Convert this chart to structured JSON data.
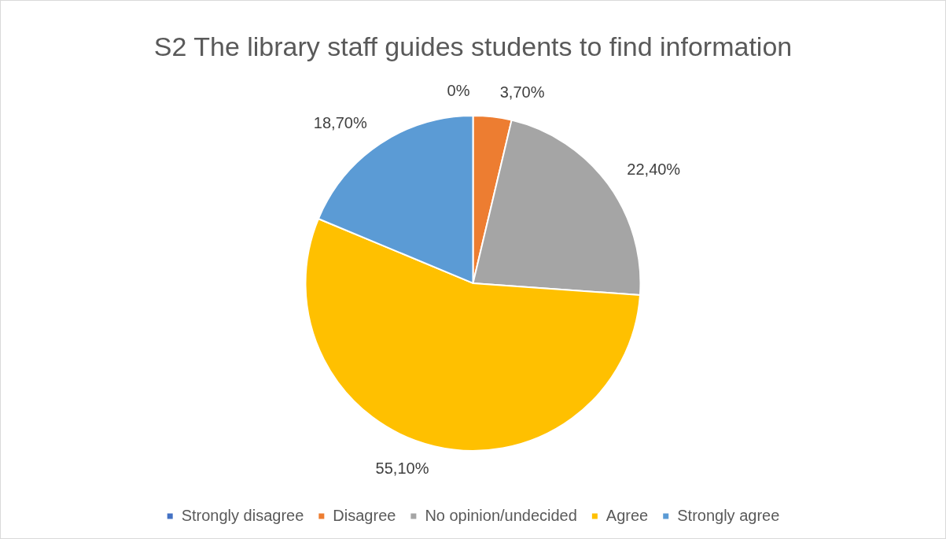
{
  "chart_data": {
    "type": "pie",
    "title": "S2 The library staff guides students to find information",
    "categories": [
      "Strongly disagree",
      "Disagree",
      "No opinion/undecided",
      "Agree",
      "Strongly agree"
    ],
    "values": [
      0,
      3.7,
      22.4,
      55.1,
      18.7
    ],
    "value_labels": [
      "0%",
      "3,70%",
      "22,40%",
      "55,10%",
      "18,70%"
    ],
    "colors": [
      "#4472c4",
      "#ed7d31",
      "#a5a5a5",
      "#ffc000",
      "#5b9bd5"
    ],
    "legend": "bottom"
  }
}
